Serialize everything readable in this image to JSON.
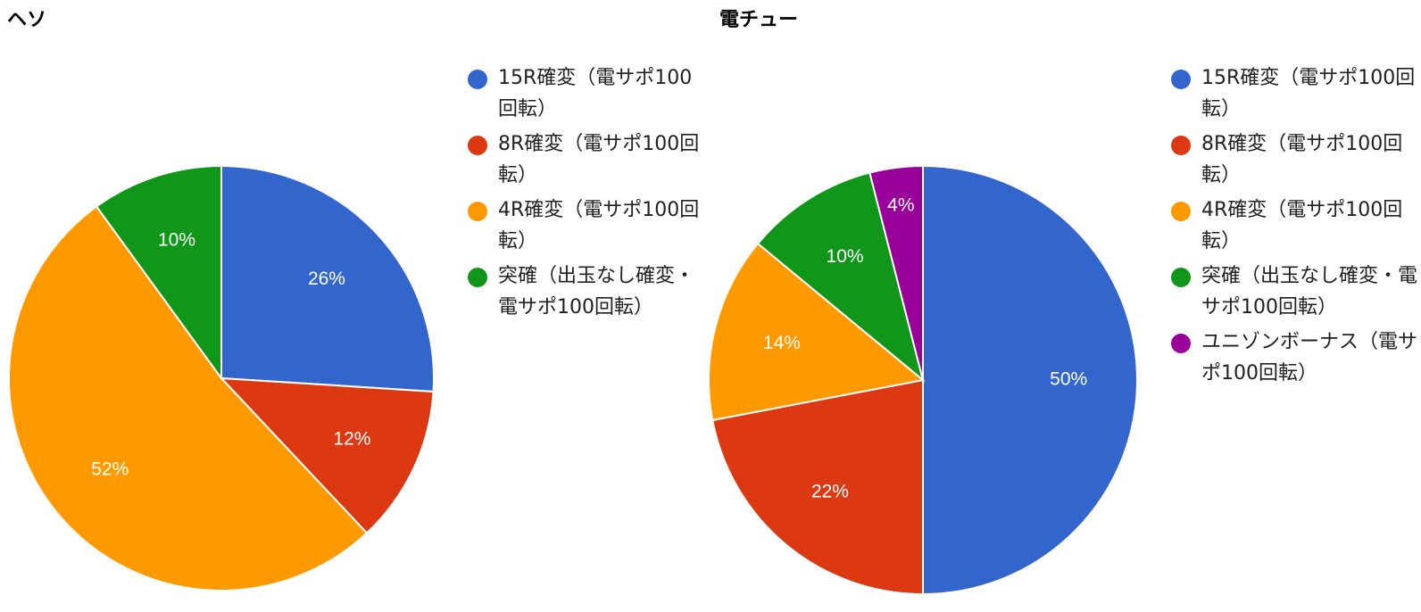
{
  "chart_data": [
    {
      "type": "pie",
      "title": "ヘソ",
      "slices": [
        {
          "label": "15R確変（電サポ100回転）",
          "value": 26,
          "display": "26%",
          "color": "#3366cc"
        },
        {
          "label": "8R確変（電サポ100回転）",
          "value": 12,
          "display": "12%",
          "color": "#dc3912"
        },
        {
          "label": "4R確変（電サポ100回転）",
          "value": 52,
          "display": "52%",
          "color": "#ff9900"
        },
        {
          "label": "突確（出玉なし確変・電サポ100回転）",
          "value": 10,
          "display": "10%",
          "color": "#109618"
        }
      ],
      "legend_position": "right"
    },
    {
      "type": "pie",
      "title": "電チュー",
      "slices": [
        {
          "label": "15R確変（電サポ100回転）",
          "value": 50,
          "display": "50%",
          "color": "#3366cc"
        },
        {
          "label": "8R確変（電サポ100回転）",
          "value": 22,
          "display": "22%",
          "color": "#dc3912"
        },
        {
          "label": "4R確変（電サポ100回転）",
          "value": 14,
          "display": "14%",
          "color": "#ff9900"
        },
        {
          "label": "突確（出玉なし確変・電サポ100回転）",
          "value": 10,
          "display": "10%",
          "color": "#109618"
        },
        {
          "label": "ユニゾンボーナス（電サポ100回転）",
          "value": 4,
          "display": "4%",
          "color": "#990099"
        }
      ],
      "legend_position": "right"
    }
  ]
}
